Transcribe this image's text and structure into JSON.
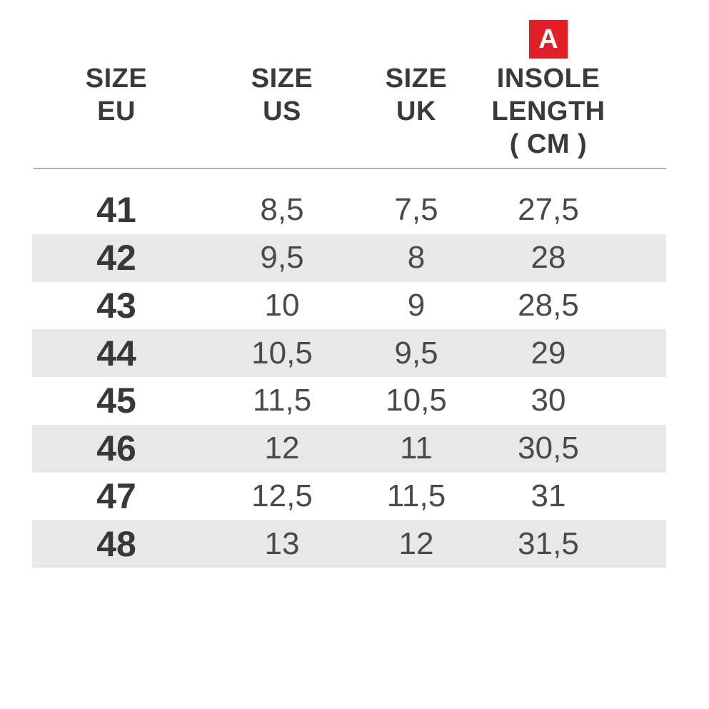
{
  "badge": {
    "label": "A",
    "color": "#E21F26",
    "text_color": "#FFFFFF"
  },
  "table": {
    "header": {
      "columns": [
        {
          "id": "size-eu",
          "lines": [
            "SIZE",
            "EU"
          ]
        },
        {
          "id": "size-us",
          "lines": [
            "SIZE",
            "US"
          ]
        },
        {
          "id": "size-uk",
          "lines": [
            "SIZE",
            "UK"
          ]
        },
        {
          "id": "insole-length",
          "lines": [
            "INSOLE",
            "LENGTH",
            "( CM )"
          ]
        }
      ]
    },
    "rows": [
      {
        "eu": "41",
        "us": "8,5",
        "uk": "7,5",
        "insole": "27,5"
      },
      {
        "eu": "42",
        "us": "9,5",
        "uk": "8",
        "insole": "28"
      },
      {
        "eu": "43",
        "us": "10",
        "uk": "9",
        "insole": "28,5"
      },
      {
        "eu": "44",
        "us": "10,5",
        "uk": "9,5",
        "insole": "29"
      },
      {
        "eu": "45",
        "us": "11,5",
        "uk": "10,5",
        "insole": "30"
      },
      {
        "eu": "46",
        "us": "12",
        "uk": "11",
        "insole": "30,5"
      },
      {
        "eu": "47",
        "us": "12,5",
        "uk": "11,5",
        "insole": "31"
      },
      {
        "eu": "48",
        "us": "13",
        "uk": "12",
        "insole": "31,5"
      }
    ],
    "colors": {
      "stripe": "#E8E8E8",
      "text": "#3A3A3A",
      "divider": "#B2B2B2"
    }
  },
  "chart_data": {
    "type": "table",
    "columns": [
      "SIZE EU",
      "SIZE US",
      "SIZE UK",
      "INSOLE LENGTH ( CM )"
    ],
    "rows": [
      [
        "41",
        "8,5",
        "7,5",
        "27,5"
      ],
      [
        "42",
        "9,5",
        "8",
        "28"
      ],
      [
        "43",
        "10",
        "9",
        "28,5"
      ],
      [
        "44",
        "10,5",
        "9,5",
        "29"
      ],
      [
        "45",
        "11,5",
        "10,5",
        "30"
      ],
      [
        "46",
        "12",
        "11",
        "30,5"
      ],
      [
        "47",
        "12,5",
        "11,5",
        "31"
      ],
      [
        "48",
        "13",
        "12",
        "31,5"
      ]
    ],
    "annotations": [
      {
        "label": "A",
        "applies_to": "INSOLE LENGTH ( CM )"
      }
    ]
  }
}
